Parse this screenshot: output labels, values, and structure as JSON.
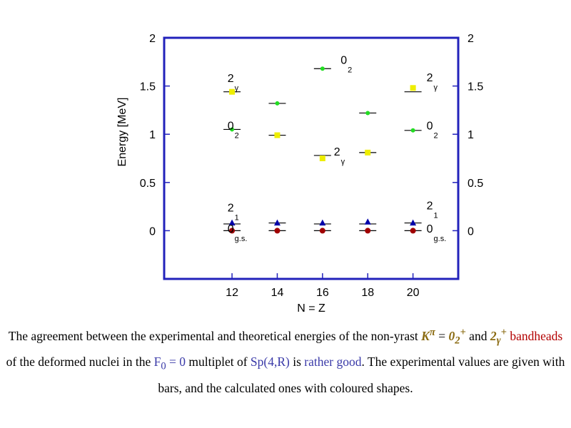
{
  "chart_data": {
    "type": "scatter",
    "xlabel": "N = Z",
    "ylabel": "Energy [MeV]",
    "xlim": [
      9,
      22
    ],
    "ylim": [
      -0.5,
      2
    ],
    "x_ticks": [
      12,
      14,
      16,
      18,
      20
    ],
    "x_tick_labels": [
      "12",
      "14",
      "16",
      "18",
      "20"
    ],
    "y_ticks": [
      0,
      0.5,
      1,
      1.5,
      2
    ],
    "y_tick_labels": [
      "0",
      "0.5",
      "1",
      "1.5",
      "2"
    ],
    "series": [
      {
        "color": "#a00000",
        "marker": "circle",
        "x": [
          12,
          14,
          16,
          18,
          20
        ],
        "y": [
          0,
          0,
          0,
          0,
          0
        ],
        "exp": [
          0,
          0,
          0,
          0,
          0
        ]
      },
      {
        "color": "#0000aa",
        "marker": "triangle",
        "x": [
          12,
          14,
          16,
          18,
          20
        ],
        "y": [
          0.08,
          0.08,
          0.08,
          0.09,
          0.08
        ],
        "exp": [
          0.07,
          0.08,
          0.07,
          0.07,
          0.08
        ]
      },
      {
        "color": "#22dd22",
        "marker": "small-circle",
        "x": [
          12,
          14,
          16,
          18,
          20
        ],
        "y": [
          1.05,
          1.32,
          1.68,
          1.22,
          1.04
        ],
        "exp": [
          1.05,
          1.32,
          1.68,
          1.22,
          1.04
        ]
      },
      {
        "color": "#eeee00",
        "marker": "square",
        "x": [
          12,
          14,
          16,
          18,
          20
        ],
        "y": [
          1.44,
          0.99,
          0.75,
          0.81,
          1.48
        ],
        "exp": [
          1.44,
          0.99,
          0.78,
          0.81,
          1.44
        ]
      }
    ],
    "annotations": [
      {
        "text": "0",
        "sub": "g.s.",
        "x": 11.8,
        "y": -0.02
      },
      {
        "text": "2",
        "sub": "1",
        "x": 11.8,
        "y": 0.2
      },
      {
        "text": "0",
        "sub": "2",
        "x": 11.8,
        "y": 1.05
      },
      {
        "text": "2",
        "sub": "γ",
        "x": 11.8,
        "y": 1.54
      },
      {
        "text": "0",
        "sub": "2",
        "x": 16.8,
        "y": 1.73
      },
      {
        "text": "2",
        "sub": "γ",
        "x": 16.5,
        "y": 0.78
      },
      {
        "text": "2",
        "sub": "γ",
        "x": 20.6,
        "y": 1.55
      },
      {
        "text": "0",
        "sub": "2",
        "x": 20.6,
        "y": 1.05
      },
      {
        "text": "2",
        "sub": "1",
        "x": 20.6,
        "y": 0.22
      },
      {
        "text": "0",
        "sub": "g.s.",
        "x": 20.6,
        "y": -0.02
      }
    ]
  },
  "caption": {
    "t1": "The agreement between the experimental and theoretical energies of the non-yrast ",
    "k": "K",
    "k_sup": "π",
    "eq": " = ",
    "s1": "0",
    "s1_sub": "2",
    "s1_sup": "+",
    "and1": "  and ",
    "s2": "2",
    "s2_sub": "γ",
    "s2_sup": "+",
    "t2": "  ",
    "bandheads": "bandheads",
    "t3": "  of the deformed nuclei in the ",
    "f0": "F",
    "f0_sub": "0",
    "f0_rest": " = 0",
    "t4": " multiplet of ",
    "sp": "Sp(4,R)",
    "t5": " is ",
    "good": "rather good",
    "t6": ".  The experimental values are given with bars, and the calculated ones with coloured shapes."
  }
}
